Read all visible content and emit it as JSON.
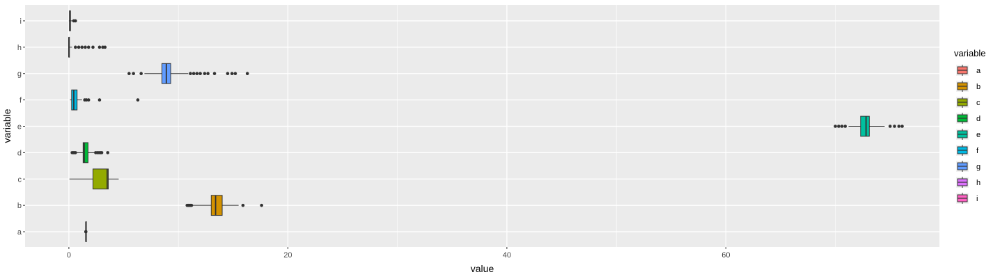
{
  "chart_data": {
    "type": "boxplot",
    "orientation": "horizontal",
    "xlabel": "value",
    "ylabel": "variable",
    "xlim": [
      -4,
      79.5
    ],
    "xticks": [
      0,
      20,
      40,
      60
    ],
    "xticks_minor": [
      10,
      30,
      50,
      70
    ],
    "grid": true,
    "legend": {
      "title": "variable",
      "position": "right"
    },
    "categories": [
      "a",
      "b",
      "c",
      "d",
      "e",
      "f",
      "g",
      "h",
      "i"
    ],
    "colors": {
      "a": "#F8766D",
      "b": "#D39200",
      "c": "#93AA00",
      "d": "#00BA38",
      "e": "#00C19F",
      "f": "#00B9E3",
      "g": "#619CFF",
      "h": "#DB72FB",
      "i": "#FF61C3"
    },
    "series": [
      {
        "name": "a",
        "whisker_low": 1.55,
        "q1": 1.55,
        "median": 1.55,
        "q3": 1.55,
        "whisker_high": 1.55,
        "outliers": [
          1.55,
          1.55
        ]
      },
      {
        "name": "b",
        "whisker_low": 11.2,
        "q1": 13.0,
        "median": 13.4,
        "q3": 14.0,
        "whisker_high": 15.5,
        "outliers": [
          10.8,
          10.9,
          11.0,
          11.1,
          11.2,
          15.9,
          17.6
        ]
      },
      {
        "name": "c",
        "whisker_low": 0.05,
        "q1": 2.2,
        "median": 3.5,
        "q3": 3.6,
        "whisker_high": 4.55,
        "outliers": []
      },
      {
        "name": "d",
        "whisker_low": 0.7,
        "q1": 1.3,
        "median": 1.4,
        "q3": 1.75,
        "whisker_high": 2.35,
        "outliers": [
          0.3,
          0.4,
          0.5,
          0.6,
          2.45,
          2.6,
          2.75,
          2.9,
          3.0,
          3.55
        ]
      },
      {
        "name": "e",
        "whisker_low": 71.2,
        "q1": 72.3,
        "median": 72.8,
        "q3": 73.1,
        "whisker_high": 74.5,
        "outliers": [
          70.0,
          70.3,
          70.6,
          70.9,
          75.0,
          75.4,
          75.8,
          76.1
        ]
      },
      {
        "name": "f",
        "whisker_low": 0.1,
        "q1": 0.25,
        "median": 0.45,
        "q3": 0.75,
        "whisker_high": 1.2,
        "outliers": [
          1.45,
          1.6,
          1.8,
          2.8,
          6.3
        ]
      },
      {
        "name": "g",
        "whisker_low": 6.9,
        "q1": 8.5,
        "median": 8.9,
        "q3": 9.3,
        "whisker_high": 10.9,
        "outliers": [
          5.5,
          5.9,
          6.6,
          11.1,
          11.4,
          11.7,
          12.0,
          12.4,
          12.7,
          13.3,
          14.5,
          14.9,
          15.2,
          16.3
        ]
      },
      {
        "name": "h",
        "whisker_low": 0.0,
        "q1": 0.0,
        "median": 0.0,
        "q3": 0.05,
        "whisker_high": 0.3,
        "outliers": [
          0.6,
          0.9,
          1.2,
          1.5,
          1.8,
          2.2,
          2.8,
          3.1,
          3.3
        ]
      },
      {
        "name": "i",
        "whisker_low": 0.0,
        "q1": 0.05,
        "median": 0.1,
        "q3": 0.15,
        "whisker_high": 0.35,
        "outliers": [
          0.45,
          0.6
        ]
      }
    ]
  }
}
